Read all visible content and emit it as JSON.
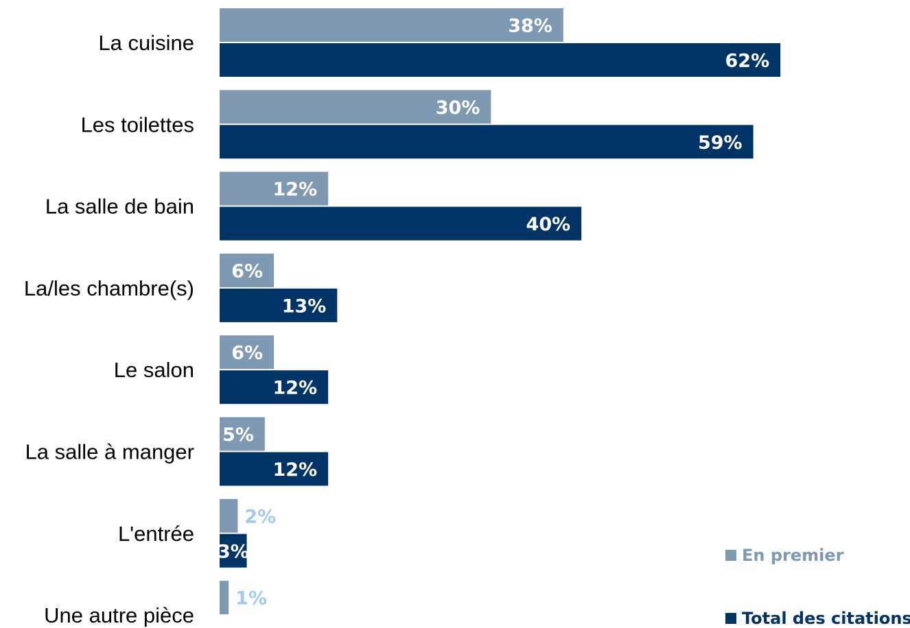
{
  "colors": {
    "first": "#8099b3",
    "total": "#003366",
    "label_inside": "#ffffff",
    "label_outside": "#a6c8ef",
    "category_text": "#000000"
  },
  "legend": {
    "first_label": "En premier",
    "total_label": "Total des citations"
  },
  "chart_data": {
    "type": "bar",
    "orientation": "horizontal",
    "categories": [
      "La cuisine",
      "Les toilettes",
      "La salle de bain",
      "La/les chambre(s)",
      "Le salon",
      "La salle à manger",
      "L'entrée",
      "Une autre pièce"
    ],
    "series": [
      {
        "name": "En premier",
        "values": [
          38,
          30,
          12,
          6,
          6,
          5,
          2,
          1
        ],
        "labels": [
          "38%",
          "30%",
          "12%",
          "6%",
          "6%",
          "5%",
          "2%",
          "1%"
        ]
      },
      {
        "name": "Total des citations",
        "values": [
          62,
          59,
          40,
          13,
          12,
          12,
          3,
          null
        ],
        "labels": [
          "62%",
          "59%",
          "40%",
          "13%",
          "12%",
          "12%",
          "3%",
          ""
        ]
      }
    ],
    "xlim": [
      0,
      100
    ],
    "grid": false,
    "legend_position": "bottom-right"
  }
}
